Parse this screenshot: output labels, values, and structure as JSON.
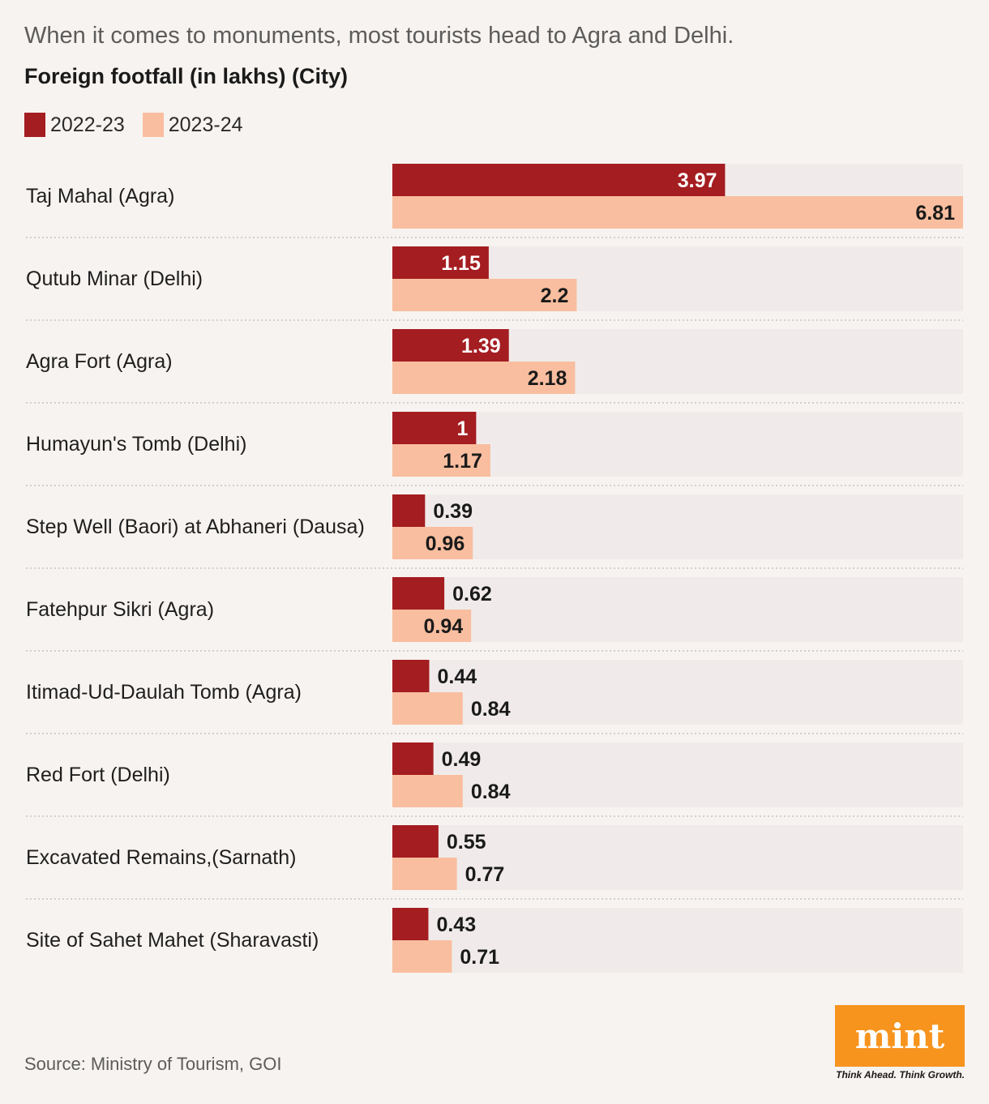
{
  "header": {
    "subtitle": "When it comes to monuments, most tourists head to Agra and Delhi.",
    "title": "Foreign footfall (in lakhs) (City)"
  },
  "colors": {
    "series_2022_23": "#a41d21",
    "series_2023_24": "#f9be9f",
    "track": "#f0ebea",
    "divider": "#c9c5c2",
    "label_dark": "#1a1a1a",
    "label_light": "#ffffff"
  },
  "chart_data": {
    "type": "bar",
    "orientation": "horizontal",
    "categories": [
      "Taj Mahal (Agra)",
      "Qutub Minar (Delhi)",
      "Agra Fort (Agra)",
      "Humayun's Tomb (Delhi)",
      "Step Well (Baori) at Abhaneri (Dausa)",
      "Fatehpur Sikri (Agra)",
      "Itimad-Ud-Daulah Tomb (Agra)",
      "Red Fort (Delhi)",
      "Excavated Remains,(Sarnath)",
      "Site of Sahet Mahet (Sharavasti)"
    ],
    "series": [
      {
        "name": "2022-23",
        "values": [
          3.97,
          1.15,
          1.39,
          1,
          0.39,
          0.62,
          0.44,
          0.49,
          0.55,
          0.43
        ]
      },
      {
        "name": "2023-24",
        "values": [
          6.81,
          2.2,
          2.18,
          1.17,
          0.96,
          0.94,
          0.84,
          0.84,
          0.77,
          0.71
        ]
      }
    ],
    "value_labels": [
      [
        "3.97",
        "1.15",
        "1.39",
        "1",
        "0.39",
        "0.62",
        "0.44",
        "0.49",
        "0.55",
        "0.43"
      ],
      [
        "6.81",
        "2.2",
        "2.18",
        "1.17",
        "0.96",
        "0.94",
        "0.84",
        "0.84",
        "0.77",
        "0.71"
      ]
    ],
    "xlim": [
      0,
      6.81
    ],
    "grid": false,
    "legend_placement": "top-left"
  },
  "footer": {
    "source": "Source: Ministry of Tourism, GOI",
    "logo_text": "mint",
    "logo_tagline": "Think Ahead. Think Growth."
  }
}
